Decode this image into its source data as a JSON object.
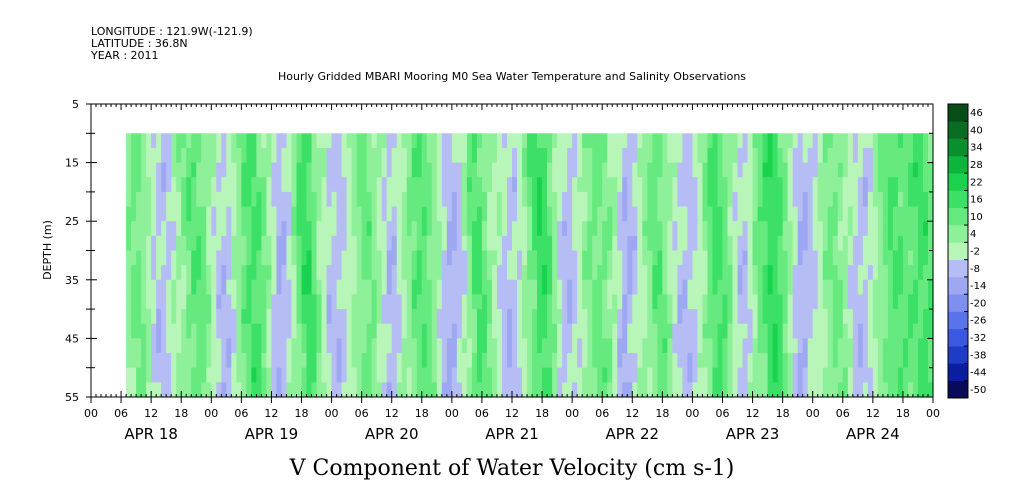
{
  "header": {
    "longitude": "LONGITUDE : 121.9W(-121.9)",
    "latitude": "LATITUDE : 36.8N",
    "year": "YEAR : 2011"
  },
  "chart_data": {
    "type": "heatmap",
    "title": "Hourly Gridded MBARI Mooring M0 Sea Water Temperature and Salinity Observations",
    "variable_label": "V Component of Water Velocity (cm s-1)",
    "ylabel": "DEPTH (m)",
    "y_reversed": true,
    "ylim": [
      5,
      55
    ],
    "ytick_labels": [
      "5",
      "15",
      "25",
      "35",
      "45",
      "55"
    ],
    "x_hour_labels": [
      "00",
      "06",
      "12",
      "18",
      "00",
      "06",
      "12",
      "18",
      "00",
      "06",
      "12",
      "18",
      "00",
      "06",
      "12",
      "18",
      "00",
      "06",
      "12",
      "18",
      "00",
      "06",
      "12",
      "18",
      "00",
      "06",
      "12",
      "18",
      "00"
    ],
    "x_date_labels": [
      "APR 18",
      "APR 19",
      "APR 20",
      "APR 21",
      "APR 22",
      "APR 23",
      "APR 24"
    ],
    "x_range_hours": [
      0,
      168
    ],
    "data_x_start_hours": 7,
    "data_depth_top": 10,
    "colorbar": {
      "levels": [
        -50,
        -44,
        -38,
        -32,
        -26,
        -20,
        -14,
        -8,
        -2,
        4,
        10,
        16,
        22,
        28,
        34,
        40,
        46
      ],
      "labels": [
        "46",
        "40",
        "34",
        "28",
        "22",
        "16",
        "10",
        "4",
        "-2",
        "-8",
        "-14",
        "-20",
        "-26",
        "-32",
        "-38",
        "-44",
        "-50"
      ],
      "colors": [
        "#0a0a5a",
        "#0c1ea0",
        "#1e3cc8",
        "#3a58e0",
        "#5a73e8",
        "#7f8ff0",
        "#9ea8f2",
        "#b6bdf5",
        "#b8f5b8",
        "#8ff09a",
        "#66ea7f",
        "#3de066",
        "#19d24e",
        "#0cb53c",
        "#0a8f2e",
        "#086d22",
        "#064d18"
      ]
    },
    "green_bands_hours": [
      9,
      21,
      32,
      43,
      55,
      66,
      77,
      90,
      101,
      113,
      125,
      136,
      148,
      160,
      166
    ],
    "blue_bands_hours": [
      14,
      27,
      38,
      49,
      60,
      72,
      84,
      95,
      107,
      119,
      130,
      142,
      154
    ]
  }
}
